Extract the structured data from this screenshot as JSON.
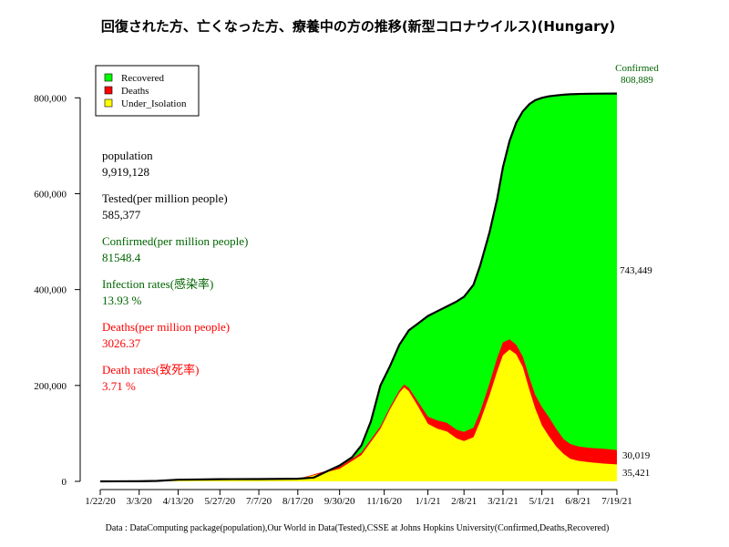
{
  "chart_data": {
    "type": "area",
    "title": "回復された方、亡くなった方、療養中の方の推移(新型コロナウイルス)(Hungary)",
    "xlabel": "",
    "ylabel": "",
    "ylim": [
      0,
      850000
    ],
    "yticks": [
      0,
      200000,
      400000,
      600000,
      800000
    ],
    "ytick_labels": [
      "0",
      "200,000",
      "400,000",
      "600,000",
      "800,000"
    ],
    "x_start": "2020-01-22",
    "x_end": "2021-07-19",
    "xtick_labels": [
      "1/22/20",
      "3/3/20",
      "4/13/20",
      "5/27/20",
      "7/7/20",
      "8/17/20",
      "9/30/20",
      "11/16/20",
      "1/1/21",
      "2/8/21",
      "3/21/21",
      "5/1/21",
      "6/8/21",
      "7/19/21"
    ],
    "xtick_days": [
      0,
      41,
      82,
      126,
      167,
      208,
      252,
      299,
      345,
      383,
      424,
      465,
      503,
      544
    ],
    "legend": {
      "position": "top-left",
      "entries": [
        {
          "label": "Recovered",
          "color": "#00ff00"
        },
        {
          "label": "Deaths",
          "color": "#ff0000"
        },
        {
          "label": "Under_Isolation",
          "color": "#ffff00"
        }
      ]
    },
    "series": [
      {
        "name": "Confirmed",
        "color": "#000000",
        "days": [
          0,
          41,
          60,
          82,
          110,
          126,
          167,
          208,
          225,
          240,
          252,
          265,
          275,
          285,
          295,
          305,
          315,
          325,
          335,
          345,
          355,
          365,
          375,
          383,
          393,
          400,
          410,
          418,
          424,
          431,
          438,
          445,
          452,
          458,
          465,
          472,
          480,
          488,
          495,
          503,
          515,
          530,
          544
        ],
        "values": [
          0,
          100,
          1000,
          3500,
          4000,
          4500,
          4800,
          5500,
          8000,
          22000,
          33000,
          50000,
          75000,
          125000,
          200000,
          240000,
          285000,
          315000,
          330000,
          345000,
          355000,
          365000,
          375000,
          385000,
          410000,
          450000,
          520000,
          590000,
          655000,
          710000,
          748000,
          772000,
          787000,
          795000,
          800000,
          803000,
          805000,
          806500,
          807500,
          808000,
          808500,
          808800,
          808889
        ]
      },
      {
        "name": "Deaths",
        "color": "#ff0000",
        "days": [
          0,
          82,
          167,
          208,
          252,
          275,
          295,
          305,
          315,
          320,
          325,
          335,
          345,
          355,
          365,
          375,
          383,
          393,
          400,
          410,
          418,
          424,
          431,
          438,
          445,
          452,
          458,
          465,
          472,
          480,
          488,
          495,
          503,
          515,
          530,
          544
        ],
        "values": [
          0,
          3500,
          4200,
          5000,
          30000,
          60000,
          115000,
          155000,
          190000,
          202000,
          195000,
          165000,
          135000,
          127000,
          122000,
          108000,
          103000,
          112000,
          145000,
          205000,
          258000,
          290000,
          296000,
          285000,
          260000,
          215000,
          180000,
          155000,
          135000,
          110000,
          88000,
          78000,
          73000,
          70000,
          68000,
          65440
        ]
      },
      {
        "name": "Under_Isolation",
        "color": "#ffff00",
        "days": [
          0,
          82,
          167,
          208,
          252,
          275,
          295,
          305,
          315,
          320,
          325,
          335,
          345,
          355,
          365,
          375,
          383,
          393,
          400,
          410,
          418,
          424,
          431,
          438,
          445,
          452,
          458,
          465,
          472,
          480,
          488,
          495,
          503,
          515,
          530,
          544
        ],
        "values": [
          0,
          3400,
          4000,
          4500,
          26000,
          55000,
          110000,
          150000,
          185000,
          196000,
          188000,
          155000,
          120000,
          110000,
          104000,
          90000,
          84000,
          92000,
          125000,
          180000,
          230000,
          263000,
          275000,
          265000,
          238000,
          190000,
          152000,
          117000,
          95000,
          73000,
          57000,
          47000,
          43000,
          40000,
          37000,
          35421
        ]
      }
    ],
    "right_labels": {
      "confirmed_title": "Confirmed",
      "confirmed_value": "808,889",
      "recovered_value": "743,449",
      "deaths_value": "30,019",
      "isolation_value": "35,421"
    },
    "stats": [
      {
        "label": "population",
        "value": "9,919,128",
        "color": "#000000"
      },
      {
        "label": "Tested(per million people)",
        "value": "585,377",
        "color": "#000000"
      },
      {
        "label": "Confirmed(per million people)",
        "value": "81548.4",
        "color": "#006400"
      },
      {
        "label": "Infection rates(感染率)",
        "value": "13.93 %",
        "color": "#006400"
      },
      {
        "label": "Deaths(per million people)",
        "value": "3026.37",
        "color": "#ff0000"
      },
      {
        "label": "Death rates(致死率)",
        "value": "3.71 %",
        "color": "#ff0000"
      }
    ],
    "source": "Data : DataComputing package(population),Our World in Data(Tested),CSSE at Johns Hopkins University(Confirmed,Deaths,Recovered)"
  }
}
